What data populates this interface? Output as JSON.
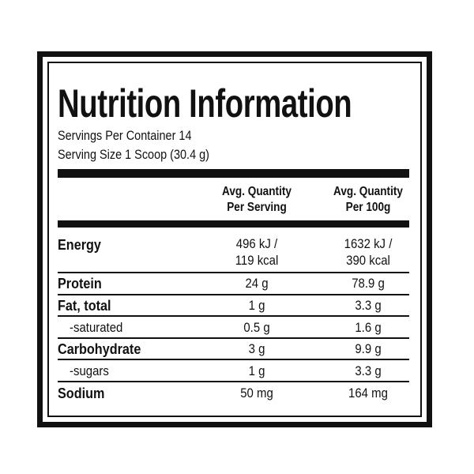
{
  "header": {
    "title": "Nutrition Information",
    "servings_per_container": "Servings Per Container 14",
    "serving_size": "Serving Size 1 Scoop (30.4 g)"
  },
  "table": {
    "columns": [
      [
        "Avg. Quantity",
        "Per Serving"
      ],
      [
        "Avg. Quantity",
        "Per 100g"
      ]
    ],
    "rows": [
      {
        "label": "Energy",
        "values": [
          [
            "496 kJ /",
            "119 kcal"
          ],
          [
            "1632 kJ /",
            "390 kcal"
          ]
        ]
      },
      {
        "label": "Protein",
        "values": [
          "24 g",
          "78.9 g"
        ]
      },
      {
        "label": "Fat, total",
        "values": [
          "1 g",
          "3.3 g"
        ]
      },
      {
        "label": "-saturated",
        "values": [
          "0.5 g",
          "1.6 g"
        ]
      },
      {
        "label": "Carbohydrate",
        "values": [
          "3 g",
          "9.9 g"
        ]
      },
      {
        "label": "-sugars",
        "values": [
          "1 g",
          "3.3 g"
        ]
      },
      {
        "label": "Sodium",
        "values": [
          "50 mg",
          "164 mg"
        ]
      }
    ]
  }
}
